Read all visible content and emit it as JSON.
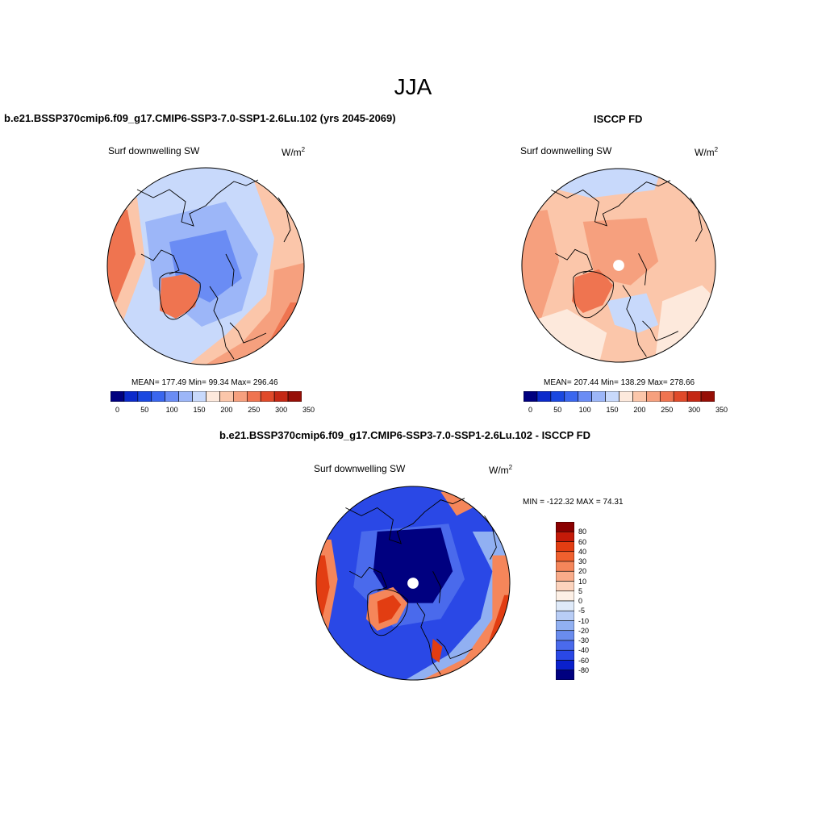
{
  "figure": {
    "season": "JJA"
  },
  "panels": [
    {
      "title": "b.e21.BSSP370cmip6.f09_g17.CMIP6-SSP3-7.0-SSP1-2.6Lu.102 (yrs 2045-2069)",
      "variable": "Surf downwelling SW",
      "units_base": "W/m",
      "units_exp": "2",
      "stats": "MEAN= 177.49  Min=  99.34  Max= 296.46"
    },
    {
      "title": "ISCCP FD",
      "variable": "Surf downwelling SW",
      "units_base": "W/m",
      "units_exp": "2",
      "stats": "MEAN= 207.44  Min= 138.29  Max= 278.66"
    },
    {
      "title": "b.e21.BSSP370cmip6.f09_g17.CMIP6-SSP3-7.0-SSP1-2.6Lu.102 - ISCCP FD",
      "variable": "Surf downwelling SW",
      "units_base": "W/m",
      "units_exp": "2",
      "stats": "MIN = -122.32 MAX =  74.31"
    }
  ],
  "abs_colorbar": {
    "colors": [
      "#00007f",
      "#0b2acb",
      "#1a48e0",
      "#3a66ee",
      "#6a8cf4",
      "#9cb6f8",
      "#c8d9fb",
      "#fde9dc",
      "#fbc6aa",
      "#f6a07e",
      "#ef7450",
      "#e04a2a",
      "#c42814",
      "#960e06"
    ],
    "tick_labels": [
      "0",
      "50",
      "100",
      "150",
      "200",
      "250",
      "300",
      "350"
    ]
  },
  "diff_colorbar": {
    "colors": [
      "#8b0000",
      "#c41a08",
      "#e23d12",
      "#f0602e",
      "#f5865a",
      "#f9ac8a",
      "#fcd3bd",
      "#fdf0e6",
      "#dfeaf9",
      "#b8cdf6",
      "#91b0f2",
      "#6a8cee",
      "#4a6aec",
      "#2a48e6",
      "#0a20cc",
      "#000080"
    ],
    "tick_labels": [
      "80",
      "60",
      "40",
      "30",
      "20",
      "10",
      "5",
      "0",
      "-5",
      "-10",
      "-20",
      "-30",
      "-40",
      "-60",
      "-80"
    ]
  },
  "map_colors": {
    "model": {
      "base": "#c8d9fb",
      "ocean_warm": "#fbc6aa",
      "hot": "#ef7450",
      "cool": "#9cb6f8",
      "cooler": "#6a8cf4"
    },
    "obs": {
      "base": "#fbc6aa",
      "warm": "#f6a07e",
      "hot": "#ef7450",
      "light": "#fde9dc",
      "cool": "#c8d9fb"
    },
    "diff": {
      "base": "#2a48e6",
      "deep": "#000080",
      "mid": "#4a6aec",
      "light": "#91b0f2",
      "warm": "#f5865a",
      "hot": "#e23d12"
    }
  }
}
